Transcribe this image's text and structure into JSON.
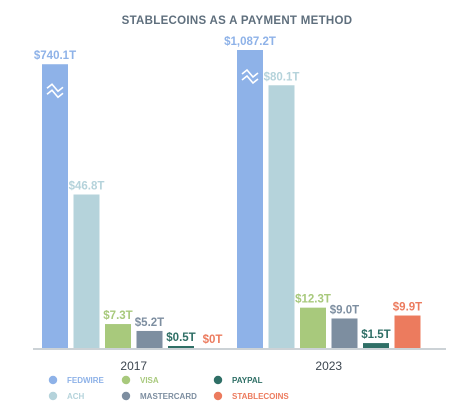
{
  "chart_data": {
    "type": "bar",
    "title": "STABLECOINS AS A PAYMENT METHOD",
    "categories": [
      "2017",
      "2023"
    ],
    "series": [
      {
        "name": "FEDWIRE",
        "color": "#8eb2e8",
        "values": [
          740.1,
          1087.2
        ],
        "labels": [
          "$740.1T",
          "$1,087.2T"
        ],
        "broken_axis": true
      },
      {
        "name": "ACH",
        "color": "#b5d3db",
        "values": [
          46.8,
          80.1
        ],
        "labels": [
          "$46.8T",
          "$80.1T"
        ]
      },
      {
        "name": "VISA",
        "color": "#a8c97c",
        "values": [
          7.3,
          12.3
        ],
        "labels": [
          "$7.3T",
          "$12.3T"
        ]
      },
      {
        "name": "MASTERCARD",
        "color": "#7d8ea0",
        "values": [
          5.2,
          9.0
        ],
        "labels": [
          "$5.2T",
          "$9.0T"
        ]
      },
      {
        "name": "PAYPAL",
        "color": "#2f6f66",
        "values": [
          0.5,
          1.5
        ],
        "labels": [
          "$0.5T",
          "$1.5T"
        ]
      },
      {
        "name": "STABLECOINS",
        "color": "#ec7b5e",
        "values": [
          0,
          9.9
        ],
        "labels": [
          "$0T",
          "$9.9T"
        ]
      }
    ],
    "xlabel": "",
    "ylabel": "",
    "grid": false,
    "legend_position": "bottom-left"
  }
}
